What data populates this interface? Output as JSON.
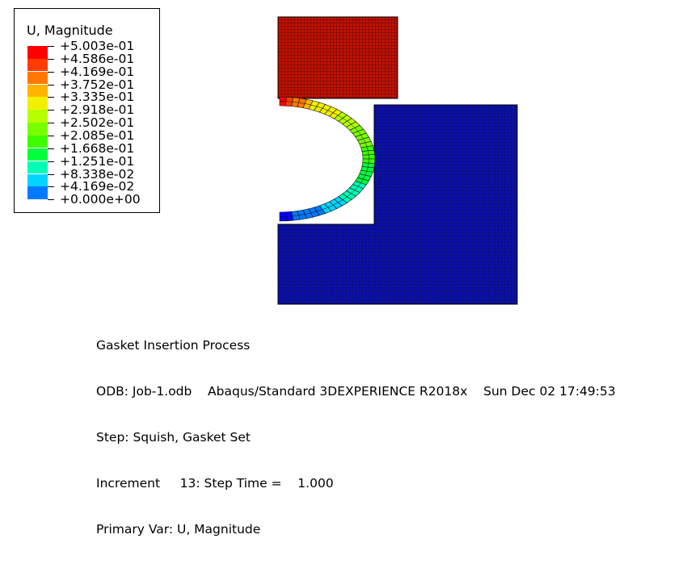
{
  "legend": {
    "title": "U, Magnitude",
    "levels": [
      {
        "label": "+5.003e-01",
        "color": "#ff0000"
      },
      {
        "label": "+4.586e-01",
        "color": "#ff3c00"
      },
      {
        "label": "+4.169e-01",
        "color": "#ff7900"
      },
      {
        "label": "+3.752e-01",
        "color": "#ffb500"
      },
      {
        "label": "+3.335e-01",
        "color": "#f2ef00"
      },
      {
        "label": "+2.918e-01",
        "color": "#b5ff00"
      },
      {
        "label": "+2.502e-01",
        "color": "#79ff00"
      },
      {
        "label": "+2.085e-01",
        "color": "#3cff00"
      },
      {
        "label": "+1.668e-01",
        "color": "#00ff3c"
      },
      {
        "label": "+1.251e-01",
        "color": "#00ffb5"
      },
      {
        "label": "+8.338e-02",
        "color": "#00d4ff"
      },
      {
        "label": "+4.169e-02",
        "color": "#0079ff"
      },
      {
        "label": "+0.000e+00",
        "color": "#0000ff"
      }
    ]
  },
  "model": {
    "punch_color": "#c40f00",
    "base_color": "#0a0fb2",
    "mesh_color": "#101010"
  },
  "info": {
    "title": "Gasket Insertion Process",
    "odb": "ODB: Job-1.odb    Abaqus/Standard 3DEXPERIENCE R2018x    Sun Dec 02 17:49:53",
    "step": "Step: Squish, Gasket Set",
    "increment": "Increment     13: Step Time =    1.000",
    "primary_var": "Primary Var: U, Magnitude"
  }
}
